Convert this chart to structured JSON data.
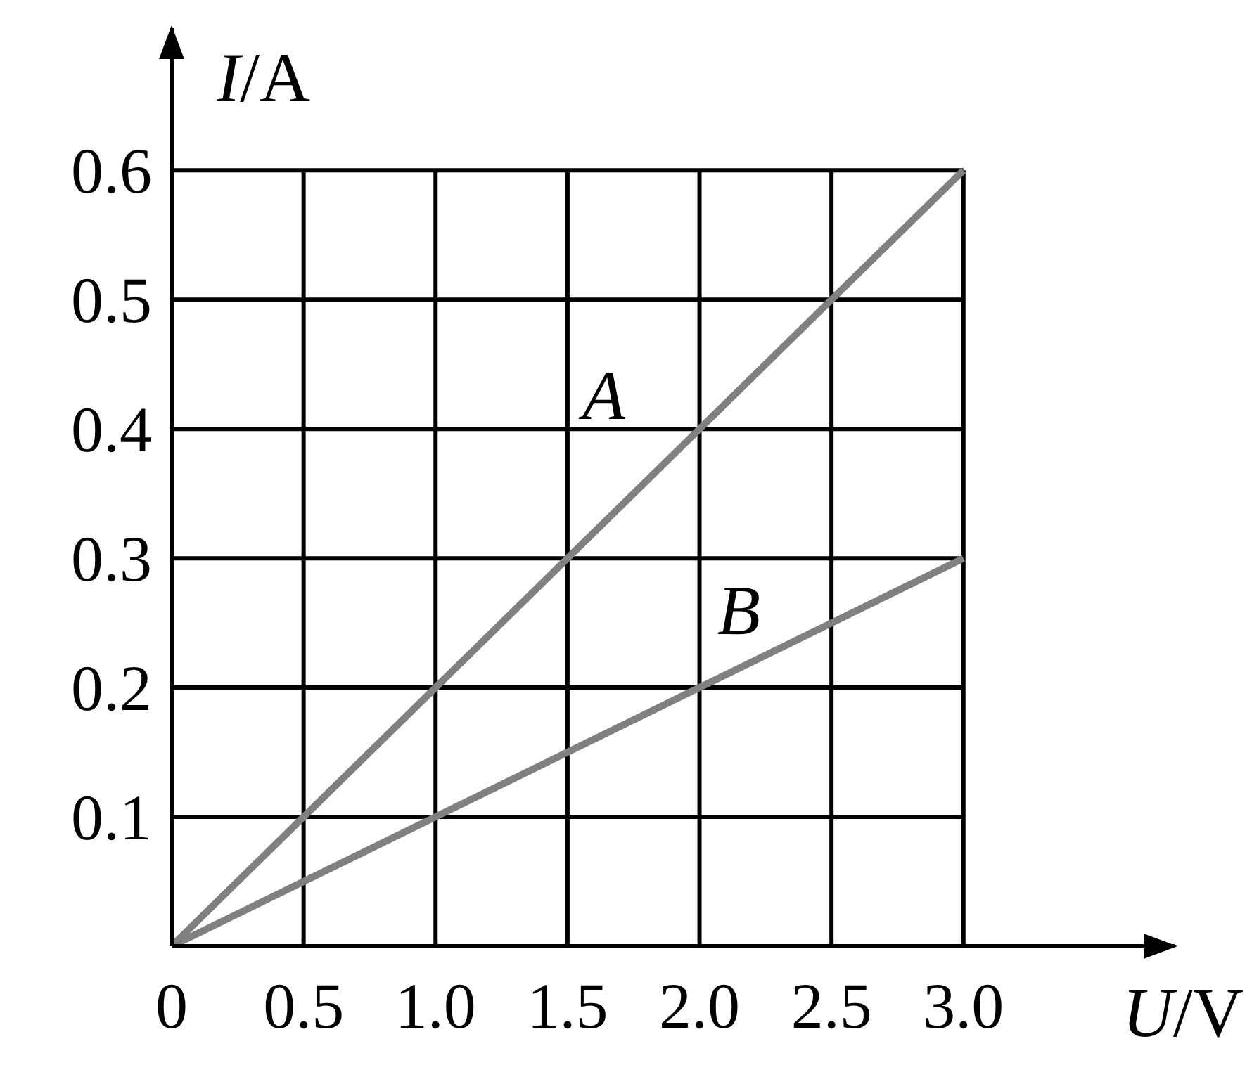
{
  "chart_data": {
    "type": "line",
    "xlabel": "U/V",
    "ylabel": "I/A",
    "x": [
      0,
      0.5,
      1.0,
      1.5,
      2.0,
      2.5,
      3.0
    ],
    "series": [
      {
        "name": "A",
        "color": "#808080",
        "values": [
          0,
          0.1,
          0.2,
          0.3,
          0.4,
          0.5,
          0.6
        ]
      },
      {
        "name": "B",
        "color": "#808080",
        "values": [
          0,
          0.05,
          0.1,
          0.15,
          0.2,
          0.25,
          0.3
        ]
      }
    ],
    "xlim": [
      0,
      3.8
    ],
    "ylim": [
      0,
      0.71
    ],
    "xticks": [
      {
        "value": 0,
        "label": "0"
      },
      0.5,
      {
        "value": 1,
        "label": "1.0"
      },
      1.5,
      {
        "value": 2,
        "label": "2.0"
      },
      2.5,
      {
        "value": 3,
        "label": "3.0"
      }
    ],
    "yticks": [
      {
        "value": 0,
        "label": null
      },
      0.1,
      0.2,
      0.3,
      0.4,
      0.5,
      0.6
    ],
    "grid": true,
    "marker": "none",
    "line_style": "solid"
  }
}
